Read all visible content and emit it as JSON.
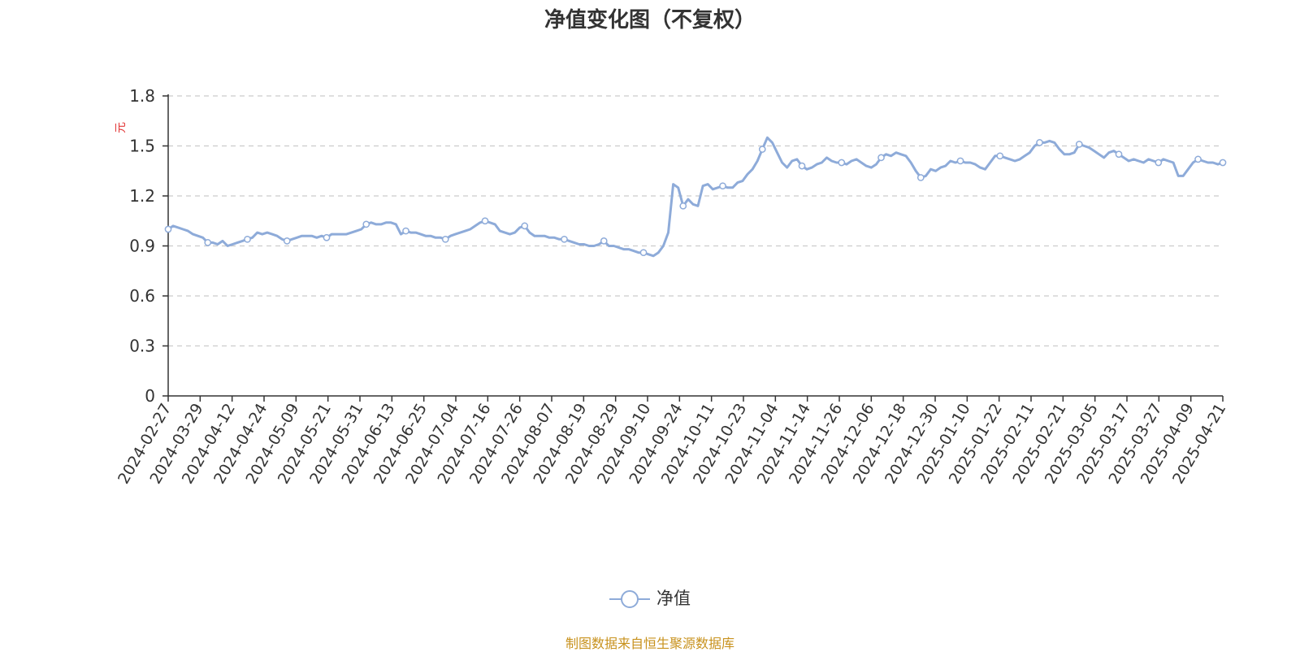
{
  "chart_data": {
    "type": "line",
    "title": "净值变化图（不复权）",
    "ylabel": "元",
    "xlabel": "",
    "ylim": [
      0,
      1.8
    ],
    "yticks": [
      0,
      0.3,
      0.6,
      0.9,
      1.2,
      1.5,
      1.8
    ],
    "ytick_labels": [
      "0",
      "0.3",
      "0.6",
      "0.9",
      "1.2",
      "1.5",
      "1.8"
    ],
    "x_tick_labels": [
      "2024-02-27",
      "2024-03-29",
      "2024-04-12",
      "2024-04-24",
      "2024-05-09",
      "2024-05-21",
      "2024-05-31",
      "2024-06-13",
      "2024-06-25",
      "2024-07-04",
      "2024-07-16",
      "2024-07-26",
      "2024-08-07",
      "2024-08-19",
      "2024-08-29",
      "2024-09-10",
      "2024-09-24",
      "2024-10-11",
      "2024-10-23",
      "2024-11-04",
      "2024-11-14",
      "2024-11-26",
      "2024-12-06",
      "2024-12-18",
      "2024-12-30",
      "2025-01-10",
      "2025-01-22",
      "2025-02-11",
      "2025-02-21",
      "2025-03-05",
      "2025-03-17",
      "2025-03-27",
      "2025-04-09",
      "2025-04-21"
    ],
    "grid": true,
    "legend_position": "bottom-center",
    "series": [
      {
        "name": "净值",
        "color": "#8eabd9",
        "values": [
          1.0,
          1.02,
          1.01,
          1.0,
          0.99,
          0.97,
          0.96,
          0.95,
          0.92,
          0.92,
          0.91,
          0.93,
          0.9,
          0.91,
          0.92,
          0.93,
          0.94,
          0.95,
          0.98,
          0.97,
          0.98,
          0.97,
          0.96,
          0.94,
          0.93,
          0.94,
          0.95,
          0.96,
          0.96,
          0.96,
          0.95,
          0.96,
          0.95,
          0.97,
          0.97,
          0.97,
          0.97,
          0.98,
          0.99,
          1.0,
          1.03,
          1.04,
          1.03,
          1.03,
          1.04,
          1.04,
          1.03,
          0.97,
          0.99,
          0.98,
          0.98,
          0.97,
          0.96,
          0.96,
          0.95,
          0.95,
          0.94,
          0.96,
          0.97,
          0.98,
          0.99,
          1.0,
          1.02,
          1.04,
          1.05,
          1.04,
          1.03,
          0.99,
          0.98,
          0.97,
          0.98,
          1.01,
          1.02,
          0.98,
          0.96,
          0.96,
          0.96,
          0.95,
          0.95,
          0.94,
          0.94,
          0.93,
          0.92,
          0.91,
          0.91,
          0.9,
          0.9,
          0.91,
          0.93,
          0.9,
          0.9,
          0.89,
          0.88,
          0.88,
          0.87,
          0.86,
          0.86,
          0.85,
          0.84,
          0.86,
          0.9,
          0.98,
          1.27,
          1.25,
          1.14,
          1.18,
          1.15,
          1.14,
          1.26,
          1.27,
          1.24,
          1.25,
          1.26,
          1.25,
          1.25,
          1.28,
          1.29,
          1.33,
          1.36,
          1.41,
          1.48,
          1.55,
          1.52,
          1.46,
          1.4,
          1.37,
          1.41,
          1.42,
          1.38,
          1.36,
          1.37,
          1.39,
          1.4,
          1.43,
          1.41,
          1.4,
          1.4,
          1.39,
          1.41,
          1.42,
          1.4,
          1.38,
          1.37,
          1.39,
          1.43,
          1.45,
          1.44,
          1.46,
          1.45,
          1.44,
          1.4,
          1.35,
          1.31,
          1.32,
          1.36,
          1.35,
          1.37,
          1.38,
          1.41,
          1.4,
          1.41,
          1.4,
          1.4,
          1.39,
          1.37,
          1.36,
          1.4,
          1.44,
          1.44,
          1.43,
          1.42,
          1.41,
          1.42,
          1.44,
          1.46,
          1.5,
          1.52,
          1.52,
          1.53,
          1.52,
          1.48,
          1.45,
          1.45,
          1.46,
          1.51,
          1.5,
          1.49,
          1.47,
          1.45,
          1.43,
          1.46,
          1.47,
          1.45,
          1.43,
          1.41,
          1.42,
          1.41,
          1.4,
          1.42,
          1.41,
          1.4,
          1.42,
          1.41,
          1.4,
          1.32,
          1.32,
          1.36,
          1.4,
          1.42,
          1.41,
          1.4,
          1.4,
          1.39,
          1.4
        ],
        "marker_indices": [
          0,
          8,
          16,
          24,
          32,
          40,
          48,
          56,
          64,
          72,
          80,
          88,
          96,
          104,
          112,
          120,
          128,
          136,
          144,
          152,
          160,
          168,
          176,
          184,
          192,
          200,
          208,
          216
        ]
      }
    ]
  },
  "legend": {
    "label": "净值"
  },
  "source_note": "制图数据来自恒生聚源数据库"
}
